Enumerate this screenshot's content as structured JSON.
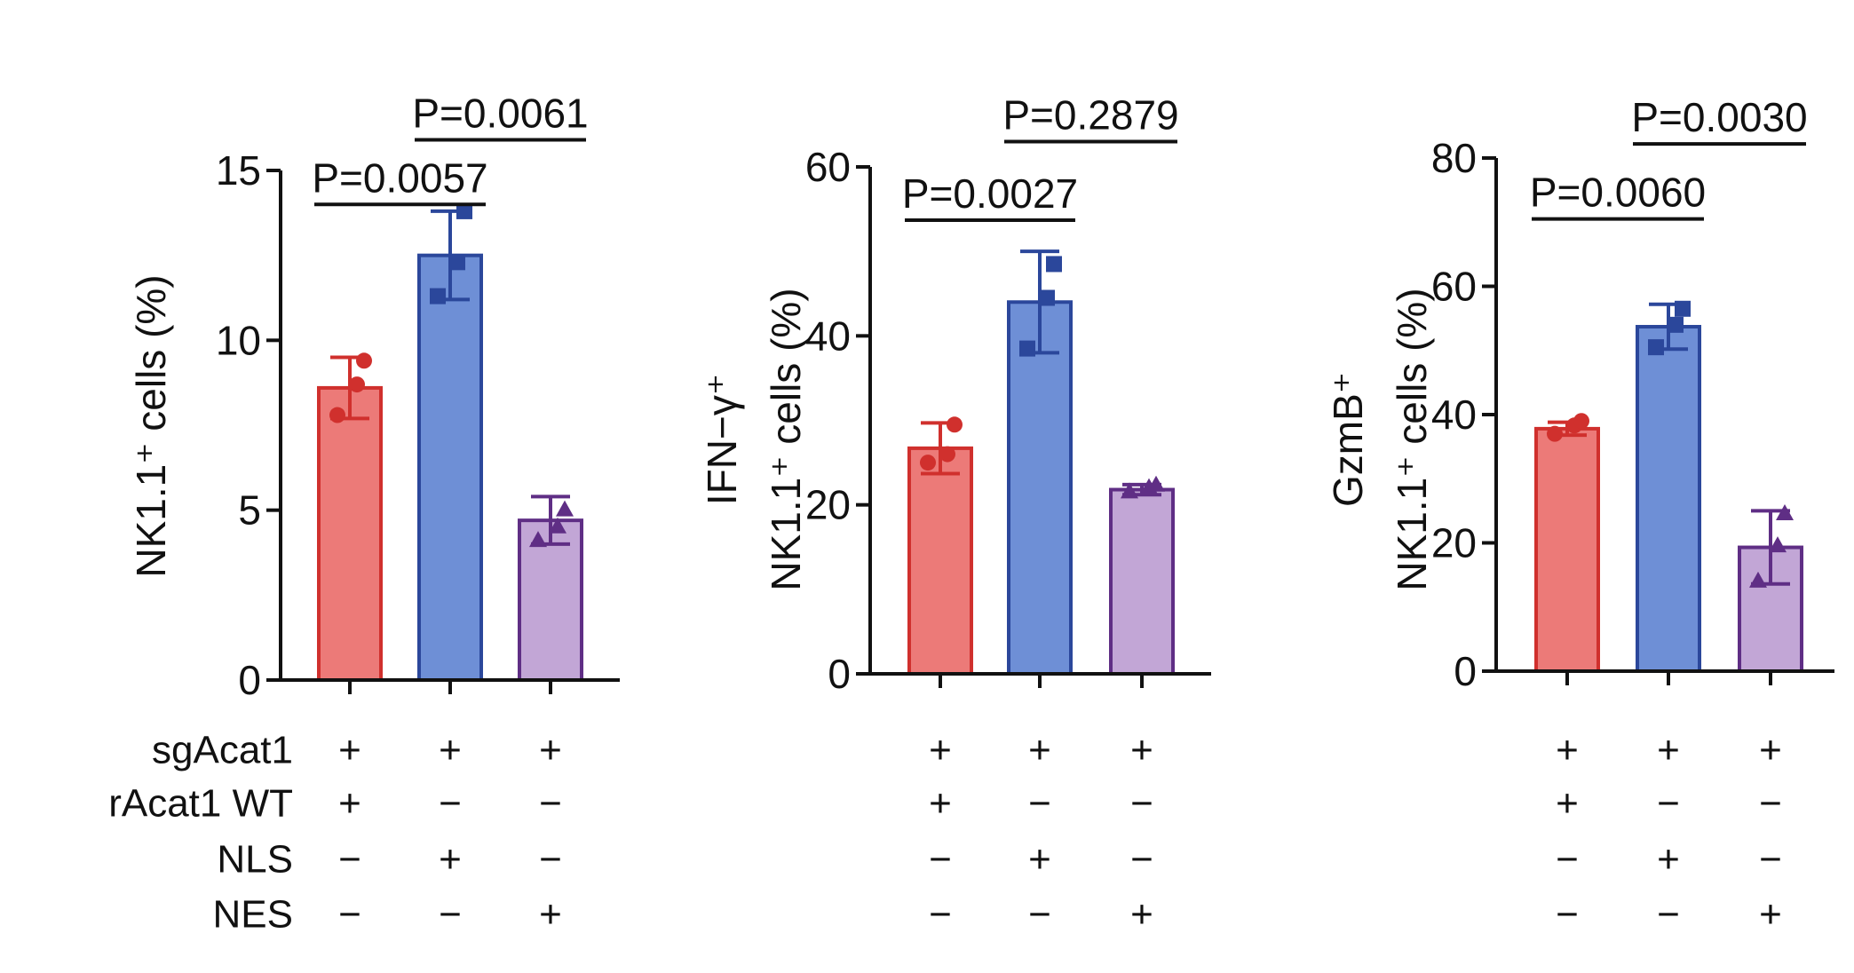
{
  "conditions": {
    "rows": [
      {
        "label": "sgAcat1",
        "signs": [
          "+",
          "+",
          "+"
        ]
      },
      {
        "label": "rAcat1 WT",
        "signs": [
          "+",
          "−",
          "−"
        ]
      },
      {
        "label": "NLS",
        "signs": [
          "−",
          "+",
          "−"
        ]
      },
      {
        "label": "NES",
        "signs": [
          "−",
          "−",
          "+"
        ]
      }
    ]
  },
  "colors": {
    "groups": [
      {
        "fill": "#ec7a78",
        "stroke": "#d0302d",
        "point": "#d0302d"
      },
      {
        "fill": "#6e8fd6",
        "stroke": "#2b479b",
        "point": "#2b479b"
      },
      {
        "fill": "#c2a6d6",
        "stroke": "#5f2e85",
        "point": "#5f2e85"
      }
    ]
  },
  "chart_data": [
    {
      "type": "bar",
      "ylabel": [
        "NK1.1⁺ cells (%)"
      ],
      "ylim": [
        0,
        15
      ],
      "yticks": [
        0,
        5,
        10,
        15
      ],
      "groups": [
        {
          "mean": 8.6,
          "sd": 0.9,
          "points": [
            7.8,
            8.7,
            9.4
          ]
        },
        {
          "mean": 12.5,
          "sd": 1.3,
          "points": [
            11.3,
            12.3,
            13.8
          ]
        },
        {
          "mean": 4.7,
          "sd": 0.7,
          "points": [
            4.1,
            4.5,
            5.0
          ]
        }
      ],
      "comparisons": [
        {
          "from": 0,
          "to": 1,
          "label": "P=0.0057",
          "y": 14.0
        },
        {
          "from": 1,
          "to": 2,
          "label": "P=0.0061",
          "y": 15.9
        }
      ]
    },
    {
      "type": "bar",
      "ylabel": [
        "IFN−γ⁺",
        "NK1.1⁺ cells (%)"
      ],
      "ylim": [
        0,
        60
      ],
      "yticks": [
        0,
        20,
        40,
        60
      ],
      "groups": [
        {
          "mean": 26.7,
          "sd": 3.0,
          "points": [
            25.0,
            26.0,
            29.5
          ]
        },
        {
          "mean": 44.0,
          "sd": 6.0,
          "points": [
            38.5,
            44.5,
            48.5
          ]
        },
        {
          "mean": 21.8,
          "sd": 0.6,
          "points": [
            21.5,
            22.0,
            22.3
          ]
        }
      ],
      "comparisons": [
        {
          "from": 0,
          "to": 1,
          "label": "P=0.0027",
          "y": 53.7
        },
        {
          "from": 1,
          "to": 2,
          "label": "P=0.2879",
          "y": 63.0
        }
      ]
    },
    {
      "type": "bar",
      "ylabel": [
        "GzmB⁺",
        "NK1.1⁺ cells (%)"
      ],
      "ylim": [
        0,
        80
      ],
      "yticks": [
        0,
        20,
        40,
        60,
        80
      ],
      "groups": [
        {
          "mean": 37.8,
          "sd": 1.0,
          "points": [
            37.0,
            38.3,
            39.0
          ]
        },
        {
          "mean": 53.7,
          "sd": 3.5,
          "points": [
            50.5,
            54.0,
            56.5
          ]
        },
        {
          "mean": 19.3,
          "sd": 5.7,
          "points": [
            14.0,
            19.5,
            24.5
          ]
        }
      ],
      "comparisons": [
        {
          "from": 0,
          "to": 1,
          "label": "P=0.0060",
          "y": 70.5
        },
        {
          "from": 1,
          "to": 2,
          "label": "P=0.0030",
          "y": 82.2
        }
      ]
    }
  ]
}
